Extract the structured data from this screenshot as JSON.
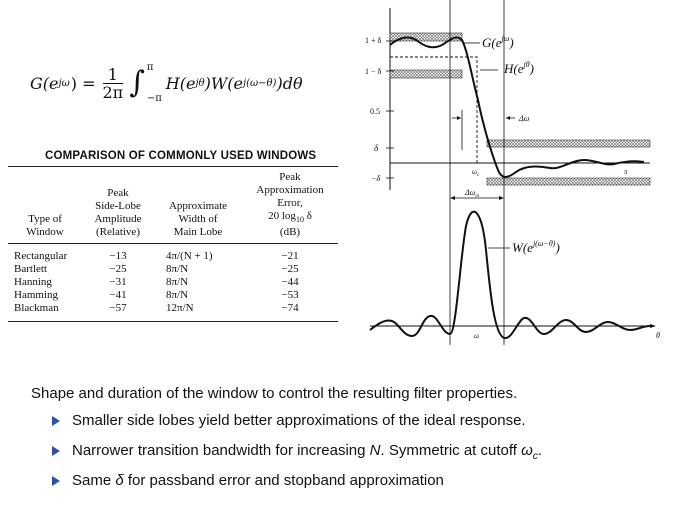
{
  "formula": {
    "lhs": "G(e",
    "lhs_sup": "jω",
    "eq": ") =",
    "frac_num": "1",
    "frac_den": "2π",
    "lim_upper": "π",
    "lim_lower": "−π",
    "integrand_h": "H(e",
    "h_sup": "jθ",
    "integrand_w": ")W(e",
    "w_sup": "j(ω−θ)",
    "integrand_end": ")dθ"
  },
  "table": {
    "title": "COMPARISON OF COMMONLY USED WINDOWS",
    "headers": {
      "type": [
        "Type of",
        "Window"
      ],
      "peak": [
        "Peak",
        "Side-Lobe",
        "Amplitude",
        "(Relative)"
      ],
      "width": [
        "Approximate",
        "Width of",
        "Main Lobe"
      ],
      "error": [
        "Peak",
        "Approximation",
        "Error,",
        "20 log",
        "10",
        " δ",
        "(dB)"
      ]
    },
    "rows": [
      {
        "type": "Rectangular",
        "peak": "−13",
        "width": "4π/(N + 1)",
        "error": "−21"
      },
      {
        "type": "Bartlett",
        "peak": "−25",
        "width": "8π/N",
        "error": "−25"
      },
      {
        "type": "Hanning",
        "peak": "−31",
        "width": "8π/N",
        "error": "−44"
      },
      {
        "type": "Hamming",
        "peak": "−41",
        "width": "8π/N",
        "error": "−53"
      },
      {
        "type": "Blackman",
        "peak": "−57",
        "width": "12π/N",
        "error": "−74"
      }
    ]
  },
  "figure": {
    "y_labels": {
      "one_plus": "1 + δ",
      "one_minus": "1 − δ",
      "half": "0.5",
      "delta": "δ",
      "minus_delta": "−δ"
    },
    "curve_labels": {
      "g": "G(e",
      "g_sup": "jω",
      "h": "H(e",
      "h_sup": "jθ",
      "w": "W(e",
      "w_sup": "j(ω−θ)"
    },
    "axis_labels": {
      "omega_c": "ω",
      "omega_c_sub": "c",
      "pi": "π",
      "omega": "ω",
      "theta": "θ"
    },
    "delta_omega": "Δω",
    "delta_omega_m": "Δω",
    "delta_omega_m_sub": "m"
  },
  "text": {
    "intro": "Shape and duration of the window to control the resulting filter properties.",
    "b1": "Smaller side lobes yield better approximations of the ideal response.",
    "b2_pre": "Narrower transition bandwidth for increasing ",
    "b2_n": "N",
    "b2_mid": ". Symmetric at cutoff ",
    "b2_omega": "ω",
    "b2_sub": "c",
    "b2_end": ".",
    "b3_pre": "Same ",
    "b3_delta": "δ",
    "b3_end": " for passband error and stopband approximation"
  },
  "colors": {
    "bullet": "#3050a8"
  }
}
